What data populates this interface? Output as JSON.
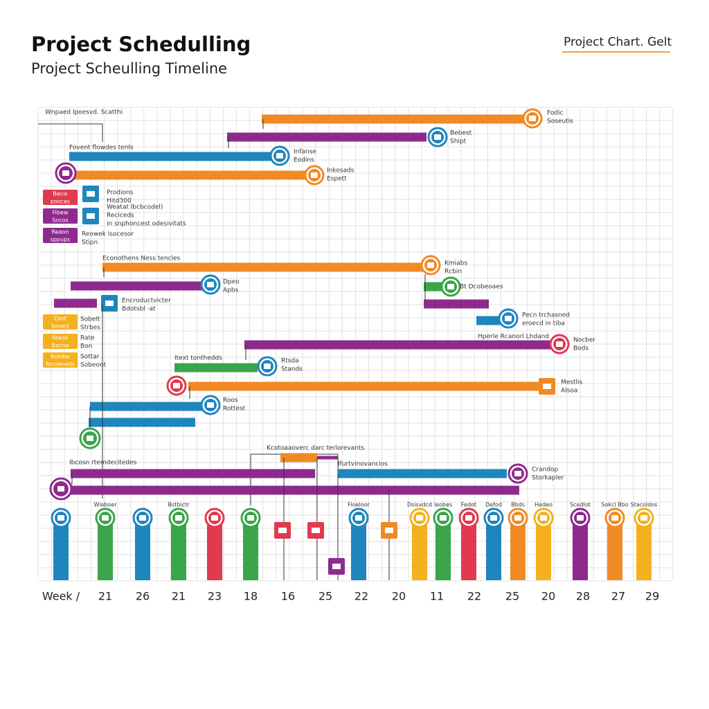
{
  "header": {
    "title": "Project Schedulling",
    "subtitle": "Project Scheulling Timeline",
    "brand": "Project Chart. Gelt"
  },
  "timeline": {
    "section_labels": [
      "Wnpaed lpoesvd. Scatthi",
      "Fovent flowdes tenls",
      "Econothens Ness tencles",
      "Hperle Rcanorl Lhdand",
      "Itext tonthedds",
      "Kcotoaaoverc darc terlorevants",
      "Ibcosn rtemdecitedes",
      "Ifurtvinovancios"
    ],
    "task_notes": [
      [
        "Fodic",
        "Soseutis"
      ],
      [
        "Bebest",
        "Shipt"
      ],
      [
        "Infanse",
        "Eodins"
      ],
      [
        "Inkosads",
        "Espett"
      ],
      [
        "Prodions",
        "Hitd300"
      ],
      [
        "Weatat lbcbcodel)"
      ],
      [
        "Reciceds",
        "in snphoncest odesivitats"
      ],
      [
        "Reowek lsocesor",
        "Stipn"
      ],
      [
        "Kmiabs",
        "Rcbin"
      ],
      [
        "Dpeo",
        "Apbs"
      ],
      [
        "Bt Dcobeoaes"
      ],
      [
        "Encroductvicter",
        "Bdotsbl ·at"
      ],
      [
        "Pecn trchasned",
        "eroecd in tiba"
      ],
      [
        "Sobelt",
        "Strbes"
      ],
      [
        "Rate",
        "Bon"
      ],
      [
        "Sottar",
        "Sobeont"
      ],
      [
        "Nocber",
        "Bods"
      ],
      [
        "Rtsda",
        "Stands"
      ],
      [
        "Mestlis",
        "Alsoa"
      ],
      [
        "Roos",
        "Rottest"
      ],
      [
        "Crandop",
        "Storkapler"
      ]
    ],
    "tags": [
      [
        "Becis",
        "pooces"
      ],
      [
        "Fibew",
        "Socos"
      ],
      [
        "Reaon",
        "sppups"
      ],
      [
        "Cost",
        "booed"
      ],
      [
        "Rteoh",
        "Bacne"
      ],
      [
        "Rolobe",
        "Rrcoeneds"
      ]
    ],
    "column_labels": [
      "Wiaboer",
      "Bstbictr",
      "Fioeloor",
      "Dsisvdcd",
      "Ieobes",
      "Fedot",
      "Defod",
      "Bbds",
      "Hedeo",
      "Scedlot",
      "Sokcl Bbo",
      "Stacoldos"
    ],
    "axis_labels": [
      "Week /",
      21,
      26,
      21,
      23,
      18,
      16,
      25,
      22,
      20,
      11,
      22,
      25,
      20,
      28,
      27,
      29
    ]
  }
}
